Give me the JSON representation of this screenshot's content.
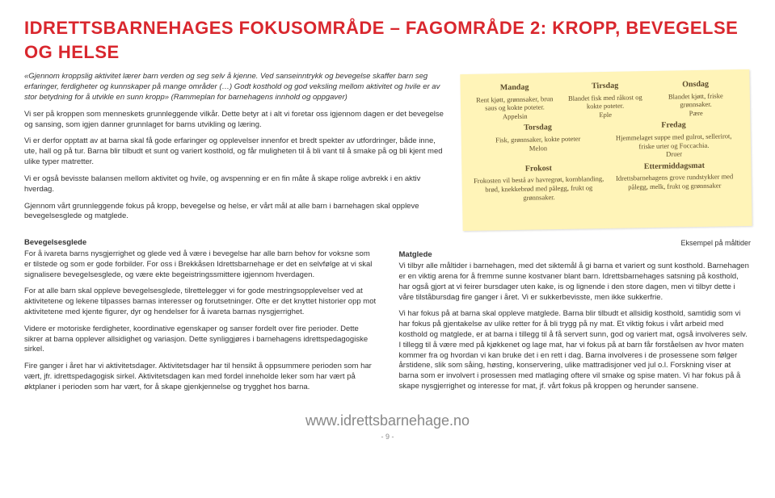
{
  "page_title": "IDRETTSBARNEHAGES FOKUSOMRÅDE – FAGOMRÅDE 2: KROPP, BEVEGELSE OG HELSE",
  "quote": "«Gjennom kroppslig aktivitet lærer barn verden og seg selv å kjenne. Ved sanseinntrykk og bevegelse skaffer barn seg erfaringer, ferdigheter og kunnskaper på mange områder (…) Godt kosthold og god veksling mellom aktivitet og hvile er av stor betydning for å utvikle en sunn kropp» (Rammeplan for barnehagens innhold og oppgaver)",
  "intro1": "Vi ser på kroppen som menneskets grunnleggende vilkår. Dette betyr at i alt vi foretar oss igjennom dagen er det bevegelse og sansing, som igjen danner grunnlaget for barns utvikling og læring.",
  "intro2": "Vi er derfor opptatt av at barna skal få gode erfaringer og opplevelser innenfor et bredt spekter av utfordringer, både inne, ute, hall og på tur. Barna blir tilbudt et sunt og variert kosthold, og får muligheten til å bli vant til å smake på og bli kjent med ulike typer matretter.",
  "intro3": "Vi er også bevisste balansen mellom aktivitet og hvile, og avspenning er en fin måte å skape rolige avbrekk i en aktiv hverdag.",
  "intro4": "Gjennom vårt grunnleggende fokus på kropp, bevegelse og helse, er vårt mål at alle barn i barnehagen skal oppleve bevegelsesglede og matglede.",
  "note": {
    "mon_h": "Mandag",
    "mon_t": "Rent kjøtt, grønnsaker, brun saus og kokte poteter.",
    "mon_f": "Appelsin",
    "tue_h": "Tirsdag",
    "tue_t": "Blandet fisk med råkost og kokte poteter.",
    "tue_f": "Eple",
    "wed_h": "Onsdag",
    "wed_t": "Blandet kjøtt, friske grønnsaker.",
    "wed_f": "Pære",
    "thu_h": "Torsdag",
    "thu_t": "Fisk, grønnsaker, kokte poteter",
    "thu_f": "Melon",
    "fri_h": "Fredag",
    "fri_t": "Hjemmelaget suppe med gulrot, sellerirot, friske urter og Foccachia.",
    "fri_f": "Druer",
    "frokost_h": "Frokost",
    "frokost_t": "Frokosten vil bestå av havregrøt, kornblanding, brød, knekkebrød med pålegg, frukt og grønnsaker.",
    "etter_h": "Ettermiddagsmat",
    "etter_t": "Idrettsbarnehagens grove rundstykker med pålegg, melk, frukt og grønnsaker"
  },
  "caption": "Eksempel på måltider",
  "left_h": "Bevegelsesglede",
  "left_p1": "For å ivareta barns nysgjerrighet og glede ved å være i bevegelse har alle barn behov for voksne som er tilstede og som er gode forbilder. For oss i Brekkåsen Idrettsbarnehage er det en selvfølge at vi skal signalisere bevegelsesglede, og være ekte begeistringssmittere igjennom hverdagen.",
  "left_p2": "For at alle barn skal oppleve bevegelsesglede, tilrettelegger vi for gode mestringsopplevelser ved at aktivitetene og lekene tilpasses barnas interesser og forutsetninger. Ofte er det knyttet historier opp mot aktivitetene med kjente figurer, dyr og hendelser for å ivareta barnas nysgjerrighet.",
  "left_p3": "Videre er motoriske ferdigheter, koordinative egenskaper og sanser fordelt over fire perioder. Dette sikrer at barna opplever allsidighet og variasjon. Dette synliggjøres i barnehagens idrettspedagogiske sirkel.",
  "left_p4": "Fire ganger i året har vi aktivitetsdager. Aktivitetsdager har til hensikt å oppsummere perioden som har vært, jfr. idrettspedagogisk sirkel. Aktivitetsdagen kan med fordel inneholde leker som har vært på øktplaner i perioden som har vært, for å skape gjenkjennelse og trygghet hos barna.",
  "right_h": "Matglede",
  "right_p1": "Vi tilbyr alle måltider i barnehagen, med det siktemål å gi barna et variert og sunt kosthold. Barnehagen er en viktig arena for å fremme sunne kostvaner blant barn. Idrettsbarnehages satsning på kosthold, har også gjort at vi feirer bursdager uten kake, is og lignende i den store dagen, men vi tilbyr dette i våre tilståbursdag fire ganger i året. Vi er sukkerbevisste, men ikke sukkerfrie.",
  "right_p2": "Vi har fokus på at barna skal oppleve matglede. Barna blir tilbudt et allsidig kosthold, samtidig som vi har fokus på gjentakelse av ulike retter for å bli trygg på ny mat. Et viktig fokus i vårt arbeid med kosthold og matglede, er at barna i tillegg til å få servert sunn, god og variert mat, også involveres selv. I tillegg til å være med på kjøkkenet og lage mat, har vi fokus på at barn får forståelsen av hvor maten kommer fra og hvordan vi kan bruke det i en rett i dag. Barna involveres i de prosessene som følger årstidene, slik som såing, høsting, konservering, ulike mattradisjoner ved jul o.l. Forskning viser at barna som er involvert i prosessen med matlaging oftere vil smake og spise maten. Vi har fokus på å skape nysgjerrighet og interesse for mat, jf. vårt fokus på kroppen og herunder sansene.",
  "footer_url": "www.idrettsbarnehage.no",
  "page_number": "- 9 -",
  "colors": {
    "title": "#d9272e",
    "note_bg": "#fff4b8",
    "note_text": "#5a4a2a"
  }
}
